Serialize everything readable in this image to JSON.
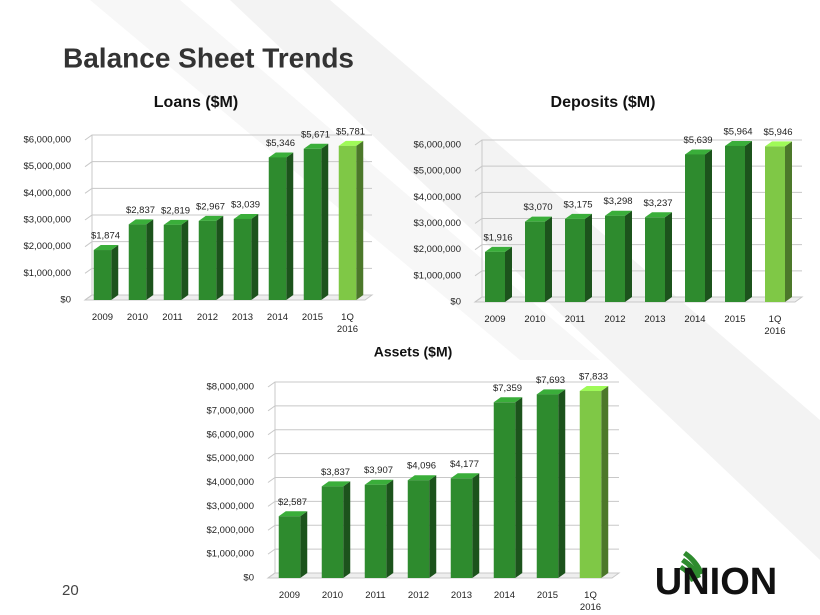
{
  "title": "Balance Sheet Trends",
  "page_number": "20",
  "logo": "UNION",
  "chart_data": [
    {
      "type": "bar",
      "title": "Loans ($M)",
      "categories": [
        "2009",
        "2010",
        "2011",
        "2012",
        "2013",
        "2014",
        "2015",
        "1Q 2016"
      ],
      "values": [
        1874000,
        2837000,
        2819000,
        2967000,
        3039000,
        5346000,
        5671000,
        5781000
      ],
      "value_labels": [
        "$1,874",
        "$2,837",
        "$2,819",
        "$2,967",
        "$3,039",
        "$5,346",
        "$5,671",
        "$5,781"
      ],
      "colors": [
        "#2e8b2e",
        "#2e8b2e",
        "#2e8b2e",
        "#2e8b2e",
        "#2e8b2e",
        "#2e8b2e",
        "#2e8b2e",
        "#7fc846"
      ],
      "ylim": [
        0,
        6000000
      ],
      "yticks": [
        {
          "value": 0,
          "label": "$0"
        },
        {
          "value": 1000000,
          "label": "$1,000,000"
        },
        {
          "value": 2000000,
          "label": "$2,000,000"
        },
        {
          "value": 3000000,
          "label": "$3,000,000"
        },
        {
          "value": 4000000,
          "label": "$4,000,000"
        },
        {
          "value": 5000000,
          "label": "$5,000,000"
        },
        {
          "value": 6000000,
          "label": "$6,000,000"
        }
      ],
      "grid": true
    },
    {
      "type": "bar",
      "title": "Deposits ($M)",
      "categories": [
        "2009",
        "2010",
        "2011",
        "2012",
        "2013",
        "2014",
        "2015",
        "1Q 2016"
      ],
      "values": [
        1916000,
        3070000,
        3175000,
        3298000,
        3237000,
        5639000,
        5964000,
        5946000
      ],
      "value_labels": [
        "$1,916",
        "$3,070",
        "$3,175",
        "$3,298",
        "$3,237",
        "$5,639",
        "$5,964",
        "$5,946"
      ],
      "colors": [
        "#2e8b2e",
        "#2e8b2e",
        "#2e8b2e",
        "#2e8b2e",
        "#2e8b2e",
        "#2e8b2e",
        "#2e8b2e",
        "#7fc846"
      ],
      "ylim": [
        0,
        6000000
      ],
      "yticks": [
        {
          "value": 0,
          "label": "$0"
        },
        {
          "value": 1000000,
          "label": "$1,000,000"
        },
        {
          "value": 2000000,
          "label": "$2,000,000"
        },
        {
          "value": 3000000,
          "label": "$3,000,000"
        },
        {
          "value": 4000000,
          "label": "$4,000,000"
        },
        {
          "value": 5000000,
          "label": "$5,000,000"
        },
        {
          "value": 6000000,
          "label": "$6,000,000"
        }
      ],
      "grid": true
    },
    {
      "type": "bar",
      "title": "Assets ($M)",
      "categories": [
        "2009",
        "2010",
        "2011",
        "2012",
        "2013",
        "2014",
        "2015",
        "1Q 2016"
      ],
      "values": [
        2587000,
        3837000,
        3907000,
        4096000,
        4177000,
        7359000,
        7693000,
        7833000
      ],
      "value_labels": [
        "$2,587",
        "$3,837",
        "$3,907",
        "$4,096",
        "$4,177",
        "$7,359",
        "$7,693",
        "$7,833"
      ],
      "colors": [
        "#2e8b2e",
        "#2e8b2e",
        "#2e8b2e",
        "#2e8b2e",
        "#2e8b2e",
        "#2e8b2e",
        "#2e8b2e",
        "#7fc846"
      ],
      "ylim": [
        0,
        8000000
      ],
      "yticks": [
        {
          "value": 0,
          "label": "$0"
        },
        {
          "value": 1000000,
          "label": "$1,000,000"
        },
        {
          "value": 2000000,
          "label": "$2,000,000"
        },
        {
          "value": 3000000,
          "label": "$3,000,000"
        },
        {
          "value": 4000000,
          "label": "$4,000,000"
        },
        {
          "value": 5000000,
          "label": "$5,000,000"
        },
        {
          "value": 6000000,
          "label": "$6,000,000"
        },
        {
          "value": 7000000,
          "label": "$7,000,000"
        },
        {
          "value": 8000000,
          "label": "$8,000,000"
        }
      ],
      "grid": true
    }
  ]
}
